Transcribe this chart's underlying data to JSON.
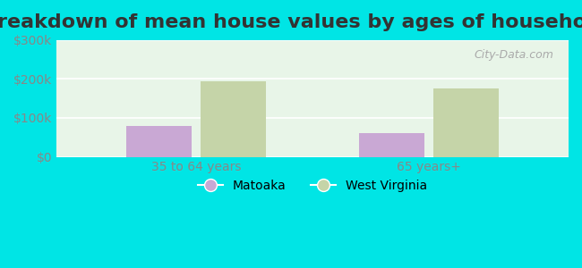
{
  "title": "Breakdown of mean house values by ages of householders",
  "categories": [
    "35 to 64 years",
    "65 years+"
  ],
  "series": {
    "Matoaka": [
      80000,
      60000
    ],
    "West Virginia": [
      193000,
      175000
    ]
  },
  "bar_colors": {
    "Matoaka": "#c9a8d4",
    "West Virginia": "#c5d4a8"
  },
  "ylim": [
    0,
    300000
  ],
  "yticks": [
    0,
    100000,
    200000,
    300000
  ],
  "ytick_labels": [
    "$0",
    "$100k",
    "$200k",
    "$300k"
  ],
  "background_color_plot": "#e8f5e8",
  "background_color_fig": "#00e5e5",
  "title_fontsize": 16,
  "watermark": "City-Data.com",
  "bar_width": 0.28
}
